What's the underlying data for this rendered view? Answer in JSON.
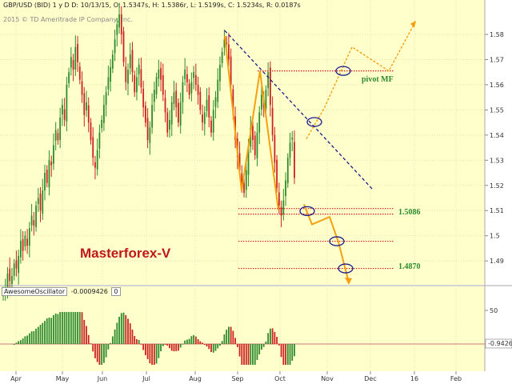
{
  "header": {
    "symbol": "GBP/USD (BID)",
    "period": "1 y D",
    "date": "D: 10/13/15",
    "open": "O: 1.5347s",
    "high": "H: 1.5386r",
    "low": "L: 1.5199s",
    "close": "C: 1.5234s",
    "range": "R: 0.0187s",
    "copyright": "2015 © TD Ameritrade IP Company, Inc."
  },
  "annotations": {
    "watermark": "Masterforex-V",
    "pivot_label": "pivot MF",
    "level_1": "1.5086",
    "level_2": "1.4870"
  },
  "oscillator": {
    "name": "AwesomeOscillator",
    "value": "-0.0009426",
    "extra": "0",
    "current_label": "-0.9426",
    "axis_label": "50"
  },
  "colors": {
    "background": "#ffffcc",
    "bull": "#2e8b2e",
    "bear": "#cc2222",
    "pattern": "#f5a011",
    "trendline": "#1a1a8c",
    "level": "#d02020",
    "watermark": "#c01818",
    "level_text": "#2e8b2e"
  },
  "chart_data": {
    "type": "candlestick",
    "symbol": "GBP/USD",
    "price_axis": {
      "ticks": [
        1.49,
        1.5,
        1.51,
        1.52,
        1.53,
        1.54,
        1.55,
        1.56,
        1.57,
        1.58
      ],
      "ylim": [
        1.4805,
        1.5905
      ]
    },
    "x_ticks": [
      "Apr",
      "May",
      "Jun",
      "Jul",
      "Aug",
      "Sep",
      "Oct",
      "Nov",
      "Dec",
      "16",
      "Feb"
    ],
    "close": [
      1.478,
      1.479,
      1.485,
      1.482,
      1.484,
      1.489,
      1.487,
      1.492,
      1.498,
      1.494,
      1.5,
      1.496,
      1.503,
      1.508,
      1.504,
      1.512,
      1.515,
      1.51,
      1.518,
      1.525,
      1.521,
      1.53,
      1.528,
      1.536,
      1.542,
      1.538,
      1.547,
      1.552,
      1.546,
      1.56,
      1.565,
      1.571,
      1.566,
      1.575,
      1.569,
      1.562,
      1.556,
      1.548,
      1.553,
      1.545,
      1.538,
      1.531,
      1.527,
      1.534,
      1.541,
      1.546,
      1.552,
      1.557,
      1.563,
      1.567,
      1.572,
      1.578,
      1.584,
      1.588,
      1.58,
      1.569,
      1.561,
      1.566,
      1.572,
      1.565,
      1.557,
      1.563,
      1.568,
      1.559,
      1.551,
      1.545,
      1.538,
      1.543,
      1.552,
      1.558,
      1.563,
      1.566,
      1.562,
      1.556,
      1.549,
      1.541,
      1.546,
      1.553,
      1.557,
      1.551,
      1.545,
      1.553,
      1.561,
      1.566,
      1.561,
      1.556,
      1.561,
      1.565,
      1.56,
      1.556,
      1.55,
      1.545,
      1.549,
      1.554,
      1.547,
      1.541,
      1.55,
      1.555,
      1.562,
      1.568,
      1.573,
      1.578,
      1.576,
      1.57,
      1.56,
      1.548,
      1.538,
      1.531,
      1.526,
      1.521,
      1.517,
      1.526,
      1.536,
      1.543,
      1.538,
      1.532,
      1.541,
      1.549,
      1.556,
      1.551,
      1.558,
      1.565,
      1.552,
      1.54,
      1.529,
      1.519,
      1.512,
      1.508,
      1.514,
      1.522,
      1.531,
      1.537,
      1.539,
      1.523
    ],
    "levels": [
      {
        "price": 1.5655,
        "label": "pivot MF"
      },
      {
        "price": 1.5108,
        "label": ""
      },
      {
        "price": 1.5086,
        "label": "1.5086"
      },
      {
        "price": 1.4978,
        "label": ""
      },
      {
        "price": 1.487,
        "label": "1.4870"
      }
    ],
    "oscillator": {
      "name": "AwesomeOscillator",
      "last": -0.0009426,
      "axis_ticks": [
        50
      ]
    }
  }
}
